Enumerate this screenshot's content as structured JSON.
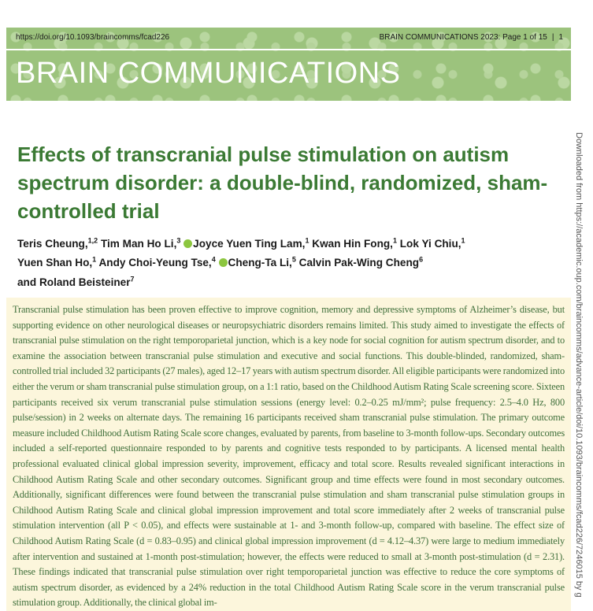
{
  "header": {
    "doi": "https://doi.org/10.1093/braincomms/fcad226",
    "running_head": "BRAIN COMMUNICATIONS 2023: Page 1 of 15",
    "separator": "|",
    "page_number": "1",
    "journal_name": "BRAIN COMMUNICATIONS"
  },
  "title": "Effects of transcranial pulse stimulation on autism spectrum disorder: a double-blind, randomized, sham-controlled trial",
  "authors": [
    {
      "name": "Teris Cheung,",
      "aff": "1,2",
      "orcid": false
    },
    {
      "name": "Tim Man Ho Li,",
      "aff": "3",
      "orcid": false
    },
    {
      "name": "Joyce Yuen Ting Lam,",
      "aff": "1",
      "orcid": true
    },
    {
      "name": "Kwan Hin Fong,",
      "aff": "1",
      "orcid": false
    },
    {
      "name": "Lok Yi Chiu,",
      "aff": "1",
      "orcid": false
    },
    {
      "name": "Yuen Shan Ho,",
      "aff": "1",
      "orcid": false
    },
    {
      "name": "Andy Choi-Yeung Tse,",
      "aff": "4",
      "orcid": false
    },
    {
      "name": "Cheng-Ta Li,",
      "aff": "5",
      "orcid": true
    },
    {
      "name": "Calvin Pak-Wing Cheng",
      "aff": "6",
      "orcid": false
    },
    {
      "name": "and Roland Beisteiner",
      "aff": "7",
      "orcid": false
    }
  ],
  "abstract": "Transcranial pulse stimulation has been proven effective to improve cognition, memory and depressive symptoms of Alzheimer’s disease, but supporting evidence on other neurological diseases or neuropsychiatric disorders remains limited. This study aimed to investigate the effects of transcranial pulse stimulation on the right temporoparietal junction, which is a key node for social cognition for autism spectrum disorder, and to examine the association between transcranial pulse stimulation and executive and social functions. This double-blinded, randomized, sham-controlled trial included 32 participants (27 males), aged 12–17 years with autism spectrum disorder. All eligible participants were randomized into either the verum or sham transcranial pulse stimulation group, on a 1:1 ratio, based on the Childhood Autism Rating Scale screening score. Sixteen participants received six verum transcranial pulse stimulation sessions (energy level: 0.2–0.25 mJ/mm²; pulse frequency: 2.5–4.0 Hz, 800 pulse/session) in 2 weeks on alternate days. The remaining 16 participants received sham transcranial pulse stimulation. The primary outcome measure included Childhood Autism Rating Scale score changes, evaluated by parents, from baseline to 3-month follow-ups. Secondary outcomes included a self-reported questionnaire responded to by parents and cognitive tests responded to by participants. A licensed mental health professional evaluated clinical global impression severity, improvement, efficacy and total score. Results revealed significant interactions in Childhood Autism Rating Scale and other secondary outcomes. Significant group and time effects were found in most secondary outcomes. Additionally, significant differences were found between the transcranial pulse stimulation and sham transcranial pulse stimulation groups in Childhood Autism Rating Scale and clinical global impression improvement and total score immediately after 2 weeks of transcranial pulse stimulation intervention (all P < 0.05), and effects were sustainable at 1- and 3-month follow-up, compared with baseline. The effect size of Childhood Autism Rating Scale (d = 0.83–0.95) and clinical global impression improvement (d = 4.12–4.37) were large to medium immediately after intervention and sustained at 1-month post-stimulation; however, the effects were reduced to small at 3-month post-stimulation (d = 2.31). These findings indicated that transcranial pulse stimulation over right temporoparietal junction was effective to reduce the core symptoms of autism spectrum disorder, as evidenced by a 24% reduction in the total Childhood Autism Rating Scale score in the verum transcranial pulse stimulation group. Additionally, the clinical global im-",
  "side_note": "Downloaded from https://academic.oup.com/braincomms/advance-article/doi/10.1093/braincomms/fcad226/7246015 by g",
  "colors": {
    "title": "#3b7a34",
    "banner": "#9cc37d",
    "abstract_bg": "#fcf6dc",
    "orcid": "#8cc63f"
  }
}
